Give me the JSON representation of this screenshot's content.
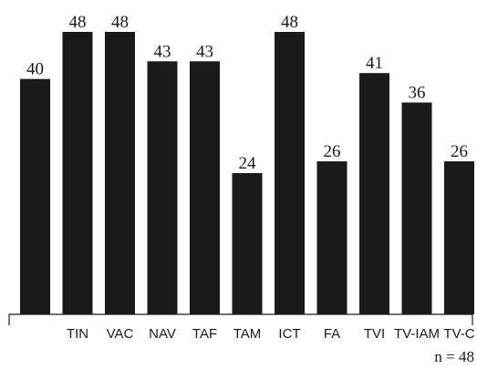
{
  "chart_data": {
    "type": "bar",
    "categories": [
      "",
      "TIN",
      "VAC",
      "NAV",
      "TAF",
      "TAM",
      "ICT",
      "FA",
      "TVI",
      "TV-IAM",
      "TV-C"
    ],
    "values": [
      40,
      48,
      48,
      43,
      43,
      24,
      48,
      26,
      41,
      36,
      26
    ],
    "ylim": [
      0,
      48
    ],
    "grid": false,
    "bar_color": "#1a1a1a",
    "annotation": "n = 48"
  }
}
